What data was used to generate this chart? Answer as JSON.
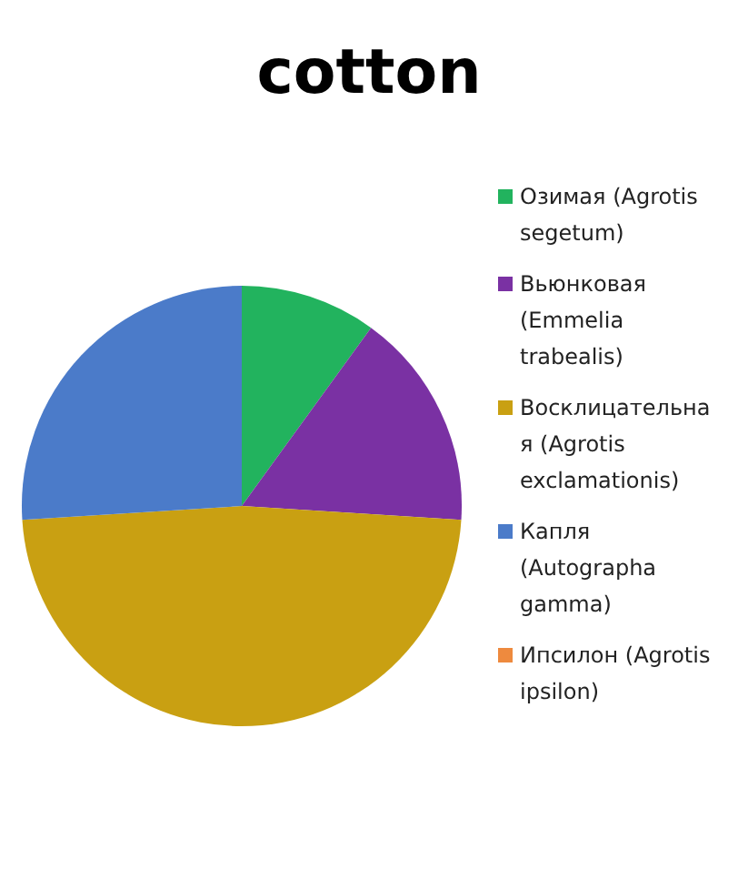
{
  "chart_data": {
    "type": "pie",
    "title": "cotton",
    "categories": [
      "Озимая (Agrotis segetum)",
      "Вьюнковая (Emmelia trabealis)",
      "Восклицательная (Agrotis exclamationis)",
      "Капля (Autographa gamma)",
      "Ипсилон (Agrotis ipsilon)"
    ],
    "values": [
      10,
      16,
      48,
      26,
      0
    ],
    "colors": [
      "#22b35e",
      "#7a31a3",
      "#c9a012",
      "#4b7bc9",
      "#ee8a3e"
    ],
    "legend": "right"
  }
}
